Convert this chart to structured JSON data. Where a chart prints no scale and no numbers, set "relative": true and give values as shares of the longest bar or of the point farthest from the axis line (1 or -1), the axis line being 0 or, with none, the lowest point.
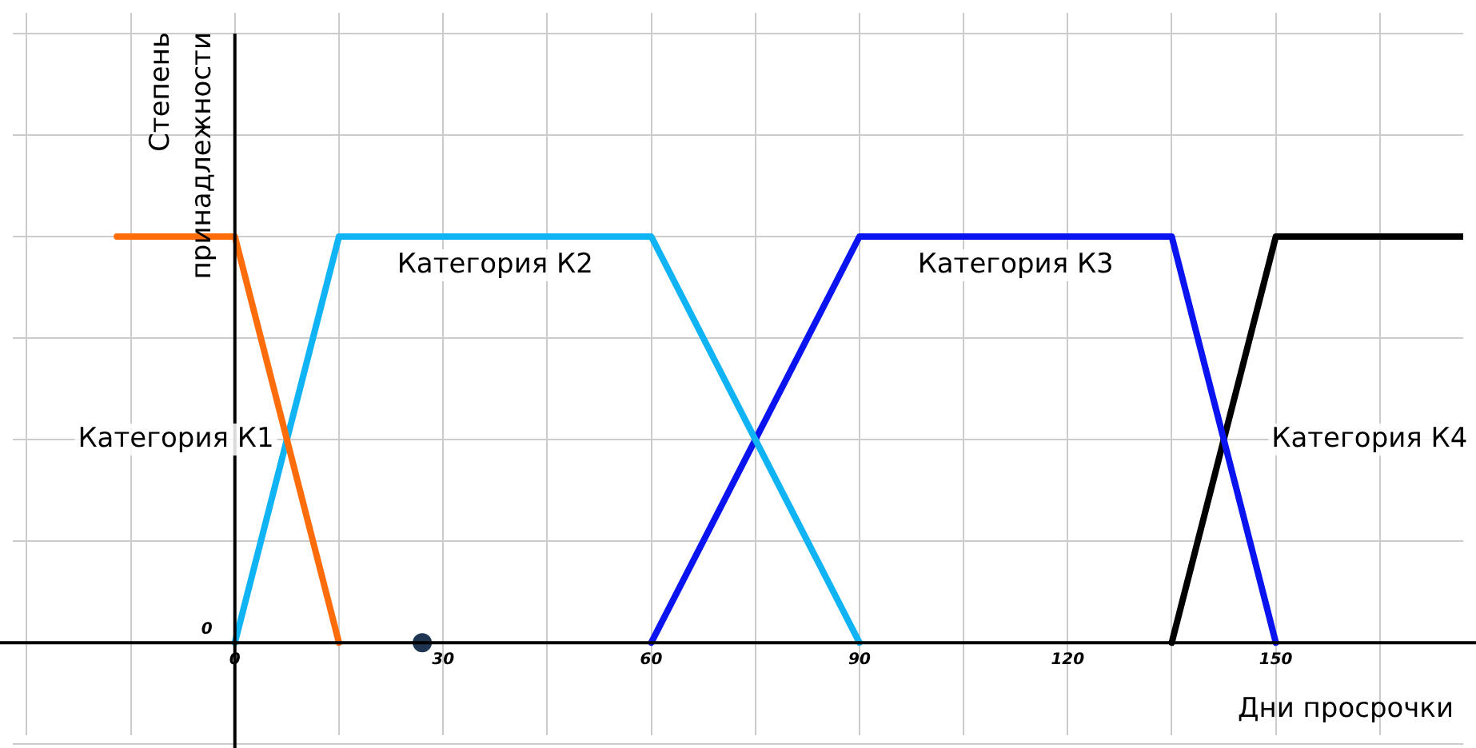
{
  "chart_data": {
    "type": "line",
    "relative": true,
    "xlabel": "Дни просрочки",
    "ylabel": "Степень принадлежности",
    "xlim": [
      -32,
      177
    ],
    "xticks": [
      {
        "value": -30,
        "label": null
      },
      {
        "value": -15,
        "label": null
      },
      0,
      {
        "value": 15,
        "label": null
      },
      30,
      {
        "value": 45,
        "label": null
      },
      60,
      {
        "value": 75,
        "label": null
      },
      90,
      {
        "value": 105,
        "label": null
      },
      120,
      {
        "value": 135,
        "label": null
      },
      150,
      {
        "value": 165,
        "label": null
      }
    ],
    "grid": true,
    "legend": false,
    "marker": "none",
    "line_style": "solid",
    "series": [
      {
        "name": "Категория К1",
        "color": "#ff6d0a",
        "x": [
          -17,
          0,
          15
        ],
        "values": [
          1,
          1,
          0
        ]
      },
      {
        "name": "Категория К2",
        "color": "#10b4f5",
        "x": [
          0,
          15,
          60,
          90
        ],
        "values": [
          0,
          1,
          1,
          0
        ]
      },
      {
        "name": "Категория К3",
        "color": "#0a14f0",
        "x": [
          60,
          90,
          135,
          150
        ],
        "values": [
          0,
          1,
          1,
          0
        ]
      },
      {
        "name": "Категория К4",
        "color": "#000000",
        "x": [
          135,
          150,
          177
        ],
        "values": [
          0,
          1,
          1
        ]
      },
      {
        "type": "scatter",
        "marker": "circle",
        "color": "#1f3552",
        "x": [
          27
        ],
        "values": [
          0
        ]
      }
    ],
    "annotations": [
      "0"
    ]
  }
}
